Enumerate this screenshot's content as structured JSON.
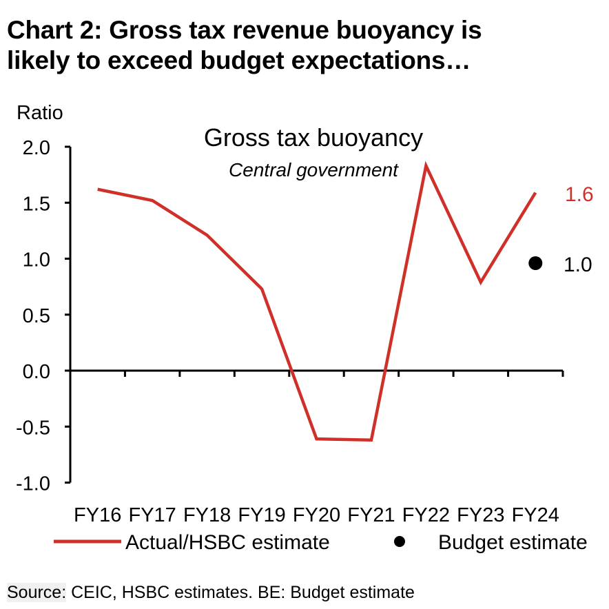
{
  "title_line1": "Chart 2: Gross tax revenue buoyancy is",
  "title_line2": "likely to exceed budget expectations…",
  "source_label": "Source:",
  "source_text": " CEIC, HSBC estimates. BE: Budget estimate",
  "colors": {
    "actual": "#d0302a",
    "budget": "#000000"
  },
  "chart_data": {
    "type": "line",
    "title": "Gross tax buoyancy",
    "subtitle": "Central government",
    "ylabel": "Ratio",
    "xlabel": "",
    "ylim": [
      -1.0,
      2.0
    ],
    "yticks": [
      "2.0",
      "1.5",
      "1.0",
      "0.5",
      "0.0",
      "-0.5",
      "-1.0"
    ],
    "categories": [
      "FY16",
      "FY17",
      "FY18",
      "FY19",
      "FY20",
      "FY21",
      "FY22",
      "FY23",
      "FY24"
    ],
    "grid": false,
    "legend_placement": "bottom",
    "series": [
      {
        "name": "Actual/HSBC estimate",
        "style": "line",
        "values": [
          1.62,
          1.52,
          1.21,
          0.73,
          -0.61,
          -0.62,
          1.83,
          0.79,
          1.59
        ],
        "end_label": "1.6"
      },
      {
        "name": "Budget estimate",
        "style": "dot",
        "points": [
          {
            "x": "FY24",
            "y": 0.96
          }
        ],
        "end_label": "1.0"
      }
    ]
  }
}
